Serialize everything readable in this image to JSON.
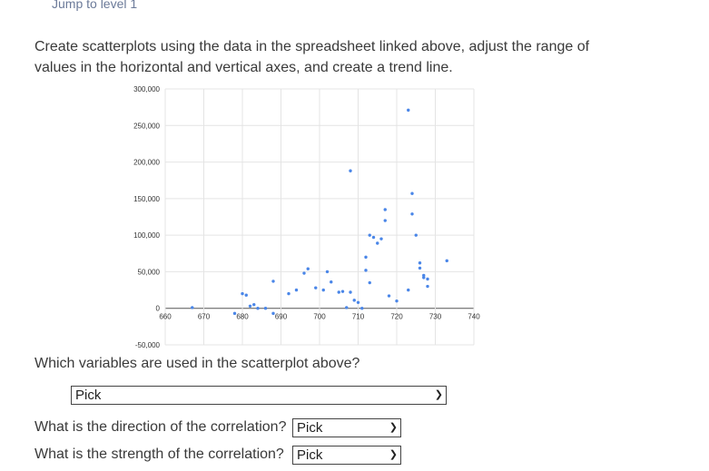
{
  "jump_link": "Jump to level 1",
  "instructions": "Create scatterplots using the data in the spreadsheet linked above, adjust the range of values in the horizontal and vertical axes, and create a trend line.",
  "chart_data": {
    "type": "scatter",
    "title": "",
    "xlabel": "",
    "ylabel": "",
    "xlim": [
      660,
      740
    ],
    "ylim": [
      -50000,
      300000
    ],
    "x_ticks": [
      "660",
      "670",
      "680",
      "690",
      "700",
      "710",
      "720",
      "730",
      "740"
    ],
    "y_ticks": [
      "-50,000",
      "0",
      "50,000",
      "100,000",
      "150,000",
      "200,000",
      "250,000",
      "300,000"
    ],
    "grid": true,
    "marker_color": "#4a86e8",
    "series": [
      {
        "x": [
          667,
          678,
          680,
          681,
          682,
          683,
          684,
          686,
          688,
          688,
          692,
          694,
          696,
          697,
          699,
          701,
          702,
          703,
          705,
          706,
          707,
          708,
          708,
          709,
          710,
          711,
          712,
          712,
          713,
          713,
          714,
          715,
          716,
          717,
          717,
          718,
          720,
          723,
          723,
          724,
          724,
          725,
          726,
          726,
          727,
          727,
          728,
          728,
          733
        ],
        "y": [
          1000,
          -7000,
          20000,
          18000,
          3000,
          5000,
          0,
          0,
          37000,
          -7000,
          20000,
          25000,
          48000,
          54000,
          28000,
          25000,
          50000,
          36000,
          22000,
          23000,
          1000,
          188000,
          22000,
          11000,
          8000,
          0,
          70000,
          52000,
          100000,
          35000,
          97000,
          89000,
          95000,
          135000,
          120000,
          17000,
          10000,
          25000,
          271000,
          157000,
          129000,
          100000,
          55000,
          62000,
          45000,
          42000,
          40000,
          30000,
          65000
        ]
      }
    ]
  },
  "question1": "Which variables are used in the scatterplot above?",
  "select1_value": "Pick",
  "question2": "What is the direction of the correlation?",
  "select2_value": "Pick",
  "question3": "What is the strength of the correlation?",
  "select3_value": "Pick"
}
